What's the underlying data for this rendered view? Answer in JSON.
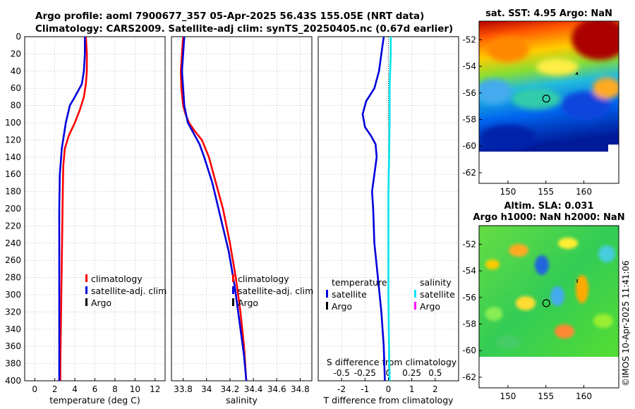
{
  "header": {
    "title_line1": "Argo profile: aoml 7900677_357 05-Apr-2025 56.43S 155.05E (NRT data)",
    "title_line2": "Climatology: CARS2009. Satellite-adj clim: synTS_20250405.nc (0.67d earlier)"
  },
  "colors": {
    "climatology": "#ff0000",
    "satellite": "#0000dd",
    "argo": "#000000",
    "salinity_satellite": "#00e5ee",
    "salinity_argo": "#ff00ff",
    "grid": "#c8c8c8"
  },
  "chart_data": [
    {
      "type": "line",
      "id": "temperature",
      "xlabel": "temperature (deg C)",
      "ylabel": "",
      "xlim": [
        -1,
        13
      ],
      "ylim": [
        400,
        0
      ],
      "x_ticks": [
        "0",
        "2",
        "4",
        "6",
        "8",
        "10",
        "12"
      ],
      "y_ticks": [
        "0",
        "20",
        "40",
        "60",
        "80",
        "100",
        "120",
        "140",
        "160",
        "180",
        "200",
        "220",
        "240",
        "260",
        "280",
        "300",
        "320",
        "340",
        "360",
        "380",
        "400"
      ],
      "grid": true,
      "legend": [
        "climatology",
        "satellite-adj. clim",
        "Argo"
      ],
      "series": [
        {
          "name": "climatology",
          "color": "climatology",
          "points": [
            [
              5.1,
              0
            ],
            [
              5.2,
              20
            ],
            [
              5.2,
              40
            ],
            [
              5.1,
              55
            ],
            [
              4.9,
              70
            ],
            [
              4.5,
              85
            ],
            [
              4.0,
              100
            ],
            [
              3.4,
              115
            ],
            [
              3.0,
              130
            ],
            [
              2.85,
              150
            ],
            [
              2.8,
              180
            ],
            [
              2.75,
              220
            ],
            [
              2.7,
              260
            ],
            [
              2.65,
              300
            ],
            [
              2.6,
              340
            ],
            [
              2.55,
              380
            ],
            [
              2.55,
              400
            ]
          ]
        },
        {
          "name": "satellite-adj. clim",
          "color": "satellite",
          "points": [
            [
              5.0,
              0
            ],
            [
              5.0,
              20
            ],
            [
              4.9,
              40
            ],
            [
              4.7,
              55
            ],
            [
              4.0,
              70
            ],
            [
              3.5,
              80
            ],
            [
              3.1,
              100
            ],
            [
              2.7,
              130
            ],
            [
              2.5,
              160
            ],
            [
              2.45,
              200
            ],
            [
              2.45,
              260
            ],
            [
              2.45,
              320
            ],
            [
              2.45,
              360
            ],
            [
              2.45,
              400
            ]
          ]
        }
      ]
    },
    {
      "type": "line",
      "id": "salinity",
      "xlabel": "salinity",
      "xlim": [
        33.7,
        34.9
      ],
      "ylim": [
        400,
        0
      ],
      "x_ticks": [
        "33.8",
        "34",
        "34.2",
        "34.4",
        "34.6",
        "34.8"
      ],
      "grid": true,
      "legend": [
        "climatology",
        "satellite-adj. clim",
        "Argo"
      ],
      "series": [
        {
          "name": "climatology",
          "color": "climatology",
          "points": [
            [
              33.8,
              0
            ],
            [
              33.79,
              20
            ],
            [
              33.78,
              40
            ],
            [
              33.785,
              60
            ],
            [
              33.8,
              80
            ],
            [
              33.82,
              90
            ],
            [
              33.85,
              100
            ],
            [
              33.9,
              110
            ],
            [
              33.96,
              120
            ],
            [
              34.02,
              140
            ],
            [
              34.08,
              170
            ],
            [
              34.14,
              200
            ],
            [
              34.2,
              240
            ],
            [
              34.25,
              280
            ],
            [
              34.29,
              320
            ],
            [
              34.32,
              360
            ],
            [
              34.34,
              400
            ]
          ]
        },
        {
          "name": "satellite-adj. clim",
          "color": "satellite",
          "points": [
            [
              33.81,
              0
            ],
            [
              33.8,
              20
            ],
            [
              33.79,
              40
            ],
            [
              33.8,
              60
            ],
            [
              33.81,
              80
            ],
            [
              33.84,
              100
            ],
            [
              33.88,
              110
            ],
            [
              33.94,
              125
            ],
            [
              33.98,
              140
            ],
            [
              34.05,
              170
            ],
            [
              34.12,
              210
            ],
            [
              34.19,
              250
            ],
            [
              34.24,
              290
            ],
            [
              34.28,
              330
            ],
            [
              34.32,
              370
            ],
            [
              34.34,
              400
            ]
          ]
        }
      ]
    },
    {
      "type": "line",
      "id": "difference",
      "xlabel": "T difference from climatology",
      "xlabel_top": "S difference from climatology",
      "xlim": [
        -3,
        3
      ],
      "ylim": [
        400,
        0
      ],
      "x_ticks": [
        "-2",
        "-1",
        "0",
        "1",
        "2"
      ],
      "s_ticks": [
        "-0.5",
        "-0.25",
        "0",
        "0.25",
        "0.5"
      ],
      "grid": true,
      "legend_titles": [
        "temperature",
        "salinity"
      ],
      "legend_left": [
        "satellite",
        "Argo"
      ],
      "legend_right": [
        "satellite",
        "Argo"
      ],
      "series": [
        {
          "name": "temperature satellite",
          "color": "satellite",
          "points": [
            [
              -0.2,
              0
            ],
            [
              -0.3,
              20
            ],
            [
              -0.4,
              40
            ],
            [
              -0.6,
              60
            ],
            [
              -0.95,
              75
            ],
            [
              -1.1,
              90
            ],
            [
              -1.0,
              105
            ],
            [
              -0.75,
              115
            ],
            [
              -0.55,
              125
            ],
            [
              -0.5,
              140
            ],
            [
              -0.6,
              160
            ],
            [
              -0.7,
              180
            ],
            [
              -0.65,
              200
            ],
            [
              -0.6,
              240
            ],
            [
              -0.45,
              280
            ],
            [
              -0.3,
              320
            ],
            [
              -0.2,
              360
            ],
            [
              -0.15,
              400
            ]
          ]
        },
        {
          "name": "salinity satellite",
          "color": "salinity_satellite",
          "points": [
            [
              0.1,
              0
            ],
            [
              0.1,
              20
            ],
            [
              0.05,
              60
            ],
            [
              0.05,
              100
            ],
            [
              0.03,
              140
            ],
            [
              0.0,
              180
            ],
            [
              0.0,
              240
            ],
            [
              0.0,
              300
            ],
            [
              0.02,
              350
            ],
            [
              0.05,
              400
            ]
          ]
        }
      ]
    }
  ],
  "maps": [
    {
      "id": "sst",
      "title": "sat. SST: 4.95 Argo: NaN",
      "x_ticks": [
        "150",
        "155",
        "160"
      ],
      "y_ticks": [
        "-52",
        "-54",
        "-56",
        "-58",
        "-60",
        "-62"
      ],
      "argo_position": [
        155.05,
        -56.43
      ]
    },
    {
      "id": "sla",
      "title_line1": "Altim. SLA: 0.031",
      "title_line2": "Argo h1000: NaN h2000: NaN",
      "x_ticks": [
        "150",
        "155",
        "160"
      ],
      "y_ticks": [
        "-52",
        "-54",
        "-56",
        "-58",
        "-60",
        "-62"
      ],
      "argo_position": [
        155.05,
        -56.43
      ]
    }
  ],
  "footer": {
    "credit": "©IMOS 10-Apr-2025 11:41:06"
  }
}
